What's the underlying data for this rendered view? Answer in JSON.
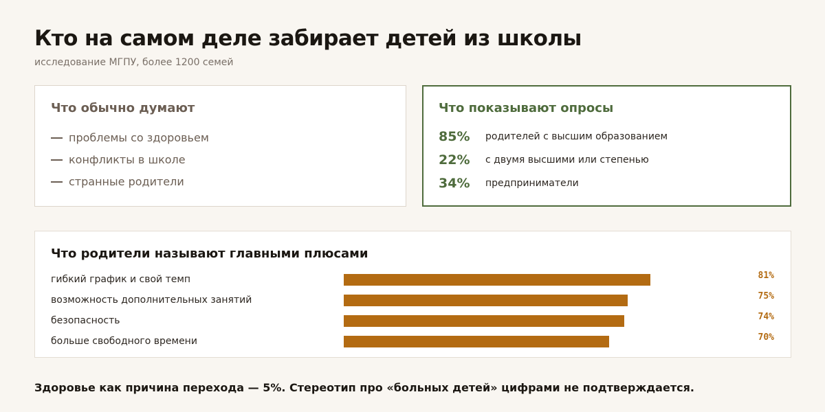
{
  "header": {
    "title": "Кто на самом деле забирает детей из школы",
    "subtitle": "исследование МГПУ, более 1200 семей"
  },
  "myth_card": {
    "heading": "Что обычно думают",
    "items": [
      "проблемы со здоровьем",
      "конфликты в школе",
      "странные родители"
    ]
  },
  "facts_card": {
    "heading": "Что показывают опросы",
    "items": [
      {
        "value": "85%",
        "text": "родителей с высшим образованием"
      },
      {
        "value": "22%",
        "text": "с двумя высшими или степенью"
      },
      {
        "value": "34%",
        "text": "предприниматели"
      }
    ]
  },
  "chart_data": {
    "type": "bar",
    "orientation": "horizontal",
    "title": "Что родители называют главными плюсами",
    "categories": [
      "гибкий график и свой темп",
      "возможность дополнительных занятий",
      "безопасность",
      "больше свободного времени"
    ],
    "values": [
      81,
      75,
      74,
      70
    ],
    "value_labels": [
      "81%",
      "75%",
      "74%",
      "70%"
    ],
    "xlim": [
      0,
      100
    ],
    "grid": false,
    "color": "#b36b12"
  },
  "footer": {
    "text": "Здоровье как причина перехода — 5%. Стереотип про «больных детей» цифрами не подтверждается."
  },
  "colors": {
    "background": "#f9f6f1",
    "accent_green": "#4e6b3c",
    "accent_orange": "#b36b12",
    "muted": "#6b5e53"
  }
}
